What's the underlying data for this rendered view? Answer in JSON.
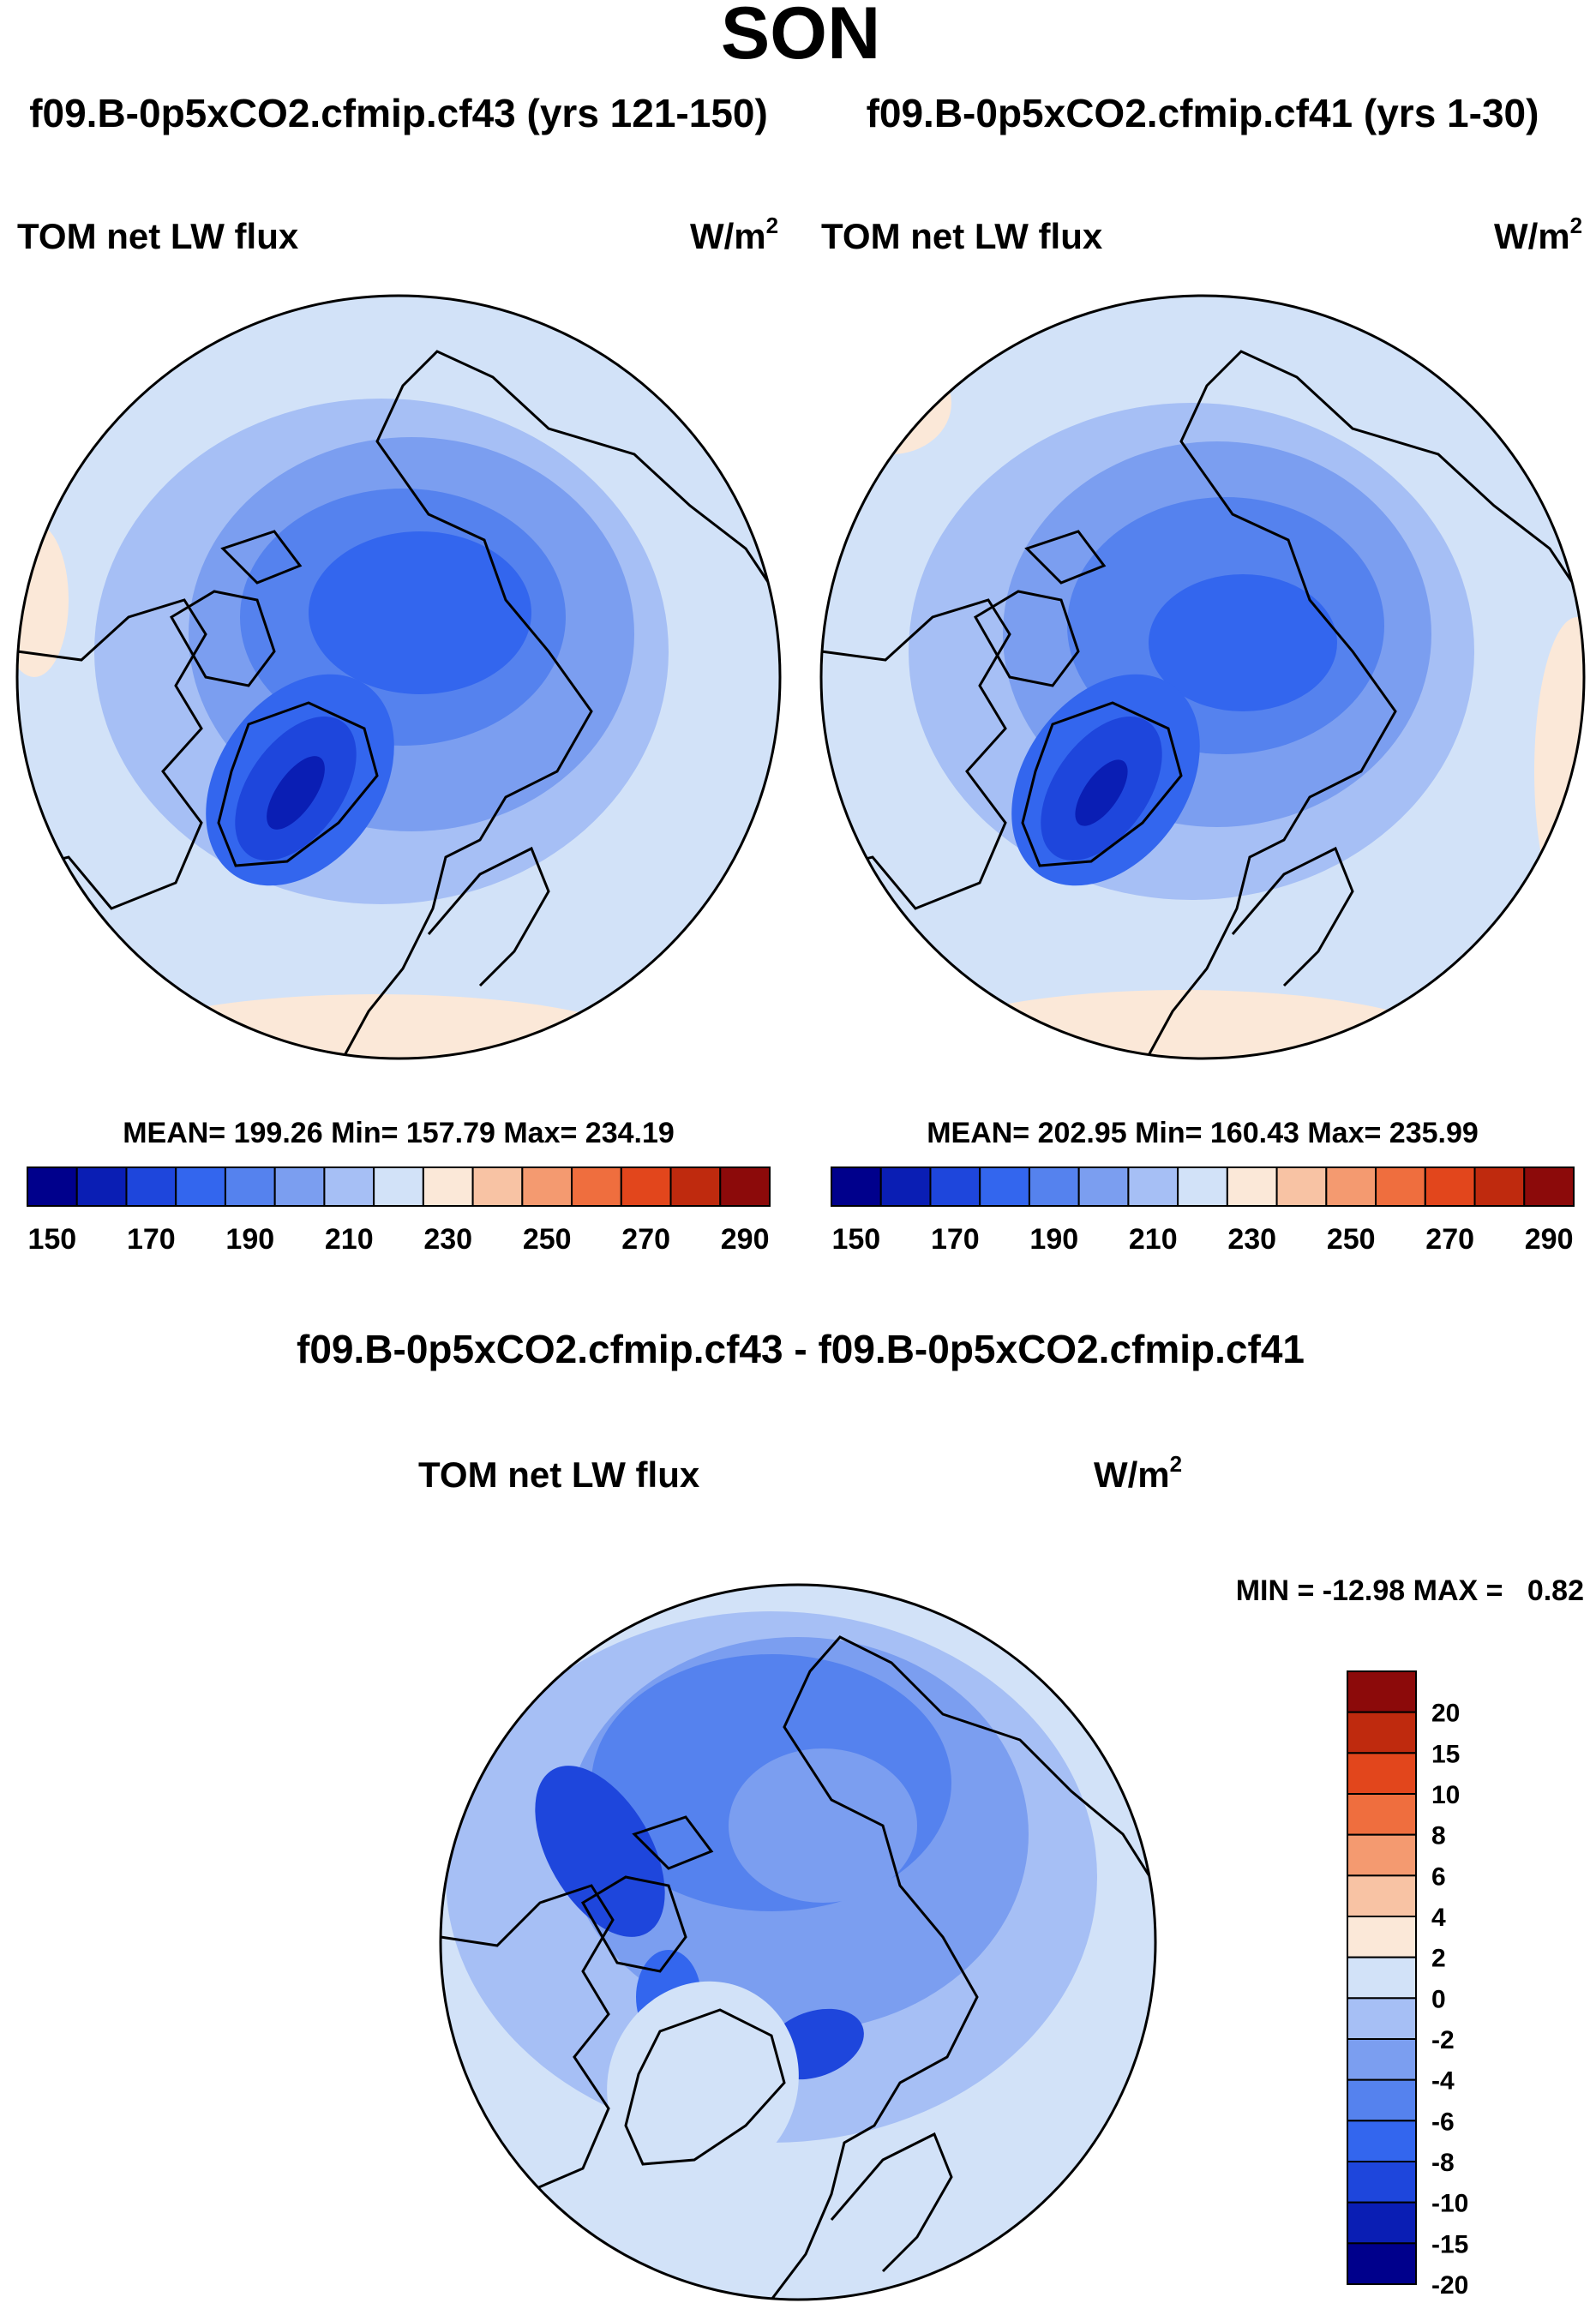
{
  "figure": {
    "season": "SON",
    "diff_title": "f09.B-0p5xCO2.cfmip.cf43 - f09.B-0p5xCO2.cfmip.cf41"
  },
  "chart_data": [
    {
      "type": "heatmap",
      "projection": "north-polar-stereographic",
      "title": "f09.B-0p5xCO2.cfmip.cf43 (yrs 121-150)",
      "variable": "TOM net LW flux",
      "units": "W/m",
      "units_sup": "2",
      "mean_label": "MEAN= 199.26",
      "min_label": "Min= 157.79",
      "max_label": "Max= 234.19",
      "levels": [
        150,
        160,
        170,
        180,
        190,
        200,
        210,
        220,
        230,
        240,
        250,
        260,
        270,
        280,
        290
      ],
      "tick_labels": [
        "150",
        "170",
        "190",
        "210",
        "230",
        "250",
        "270",
        "290"
      ],
      "colors": [
        "#00008c",
        "#0a1eb4",
        "#1e46dc",
        "#3366ee",
        "#5582ee",
        "#7b9ef0",
        "#a6bff5",
        "#d2e2f8",
        "#fbe8d8",
        "#f8c3a4",
        "#f49a70",
        "#ef6e3e",
        "#e2461c",
        "#bf2a0e",
        "#8c0a0a"
      ]
    },
    {
      "type": "heatmap",
      "projection": "north-polar-stereographic",
      "title": "f09.B-0p5xCO2.cfmip.cf41 (yrs 1-30)",
      "variable": "TOM net LW flux",
      "units": "W/m",
      "units_sup": "2",
      "mean_label": "MEAN= 202.95",
      "min_label": "Min= 160.43",
      "max_label": "Max= 235.99",
      "levels": [
        150,
        160,
        170,
        180,
        190,
        200,
        210,
        220,
        230,
        240,
        250,
        260,
        270,
        280,
        290
      ],
      "tick_labels": [
        "150",
        "170",
        "190",
        "210",
        "230",
        "250",
        "270",
        "290"
      ],
      "colors": [
        "#00008c",
        "#0a1eb4",
        "#1e46dc",
        "#3366ee",
        "#5582ee",
        "#7b9ef0",
        "#a6bff5",
        "#d2e2f8",
        "#fbe8d8",
        "#f8c3a4",
        "#f49a70",
        "#ef6e3e",
        "#e2461c",
        "#bf2a0e",
        "#8c0a0a"
      ]
    },
    {
      "type": "heatmap",
      "projection": "north-polar-stereographic",
      "title": "f09.B-0p5xCO2.cfmip.cf43 - f09.B-0p5xCO2.cfmip.cf41",
      "variable": "TOM net LW flux",
      "units": "W/m",
      "units_sup": "2",
      "minmax_label": "MIN = -12.98 MAX =   0.82",
      "levels": [
        -20,
        -15,
        -10,
        -8,
        -6,
        -4,
        -2,
        0,
        2,
        4,
        6,
        8,
        10,
        15,
        20
      ],
      "tick_labels": [
        "20",
        "15",
        "10",
        "8",
        "6",
        "4",
        "2",
        "0",
        "-2",
        "-4",
        "-6",
        "-8",
        "-10",
        "-15",
        "-20"
      ],
      "colors": [
        "#8c0a0a",
        "#bf2a0e",
        "#e2461c",
        "#ef6e3e",
        "#f49a70",
        "#f8c3a4",
        "#fbe8d8",
        "#d2e2f8",
        "#a6bff5",
        "#7b9ef0",
        "#5582ee",
        "#3366ee",
        "#1e46dc",
        "#0a1eb4",
        "#00008c"
      ]
    }
  ]
}
